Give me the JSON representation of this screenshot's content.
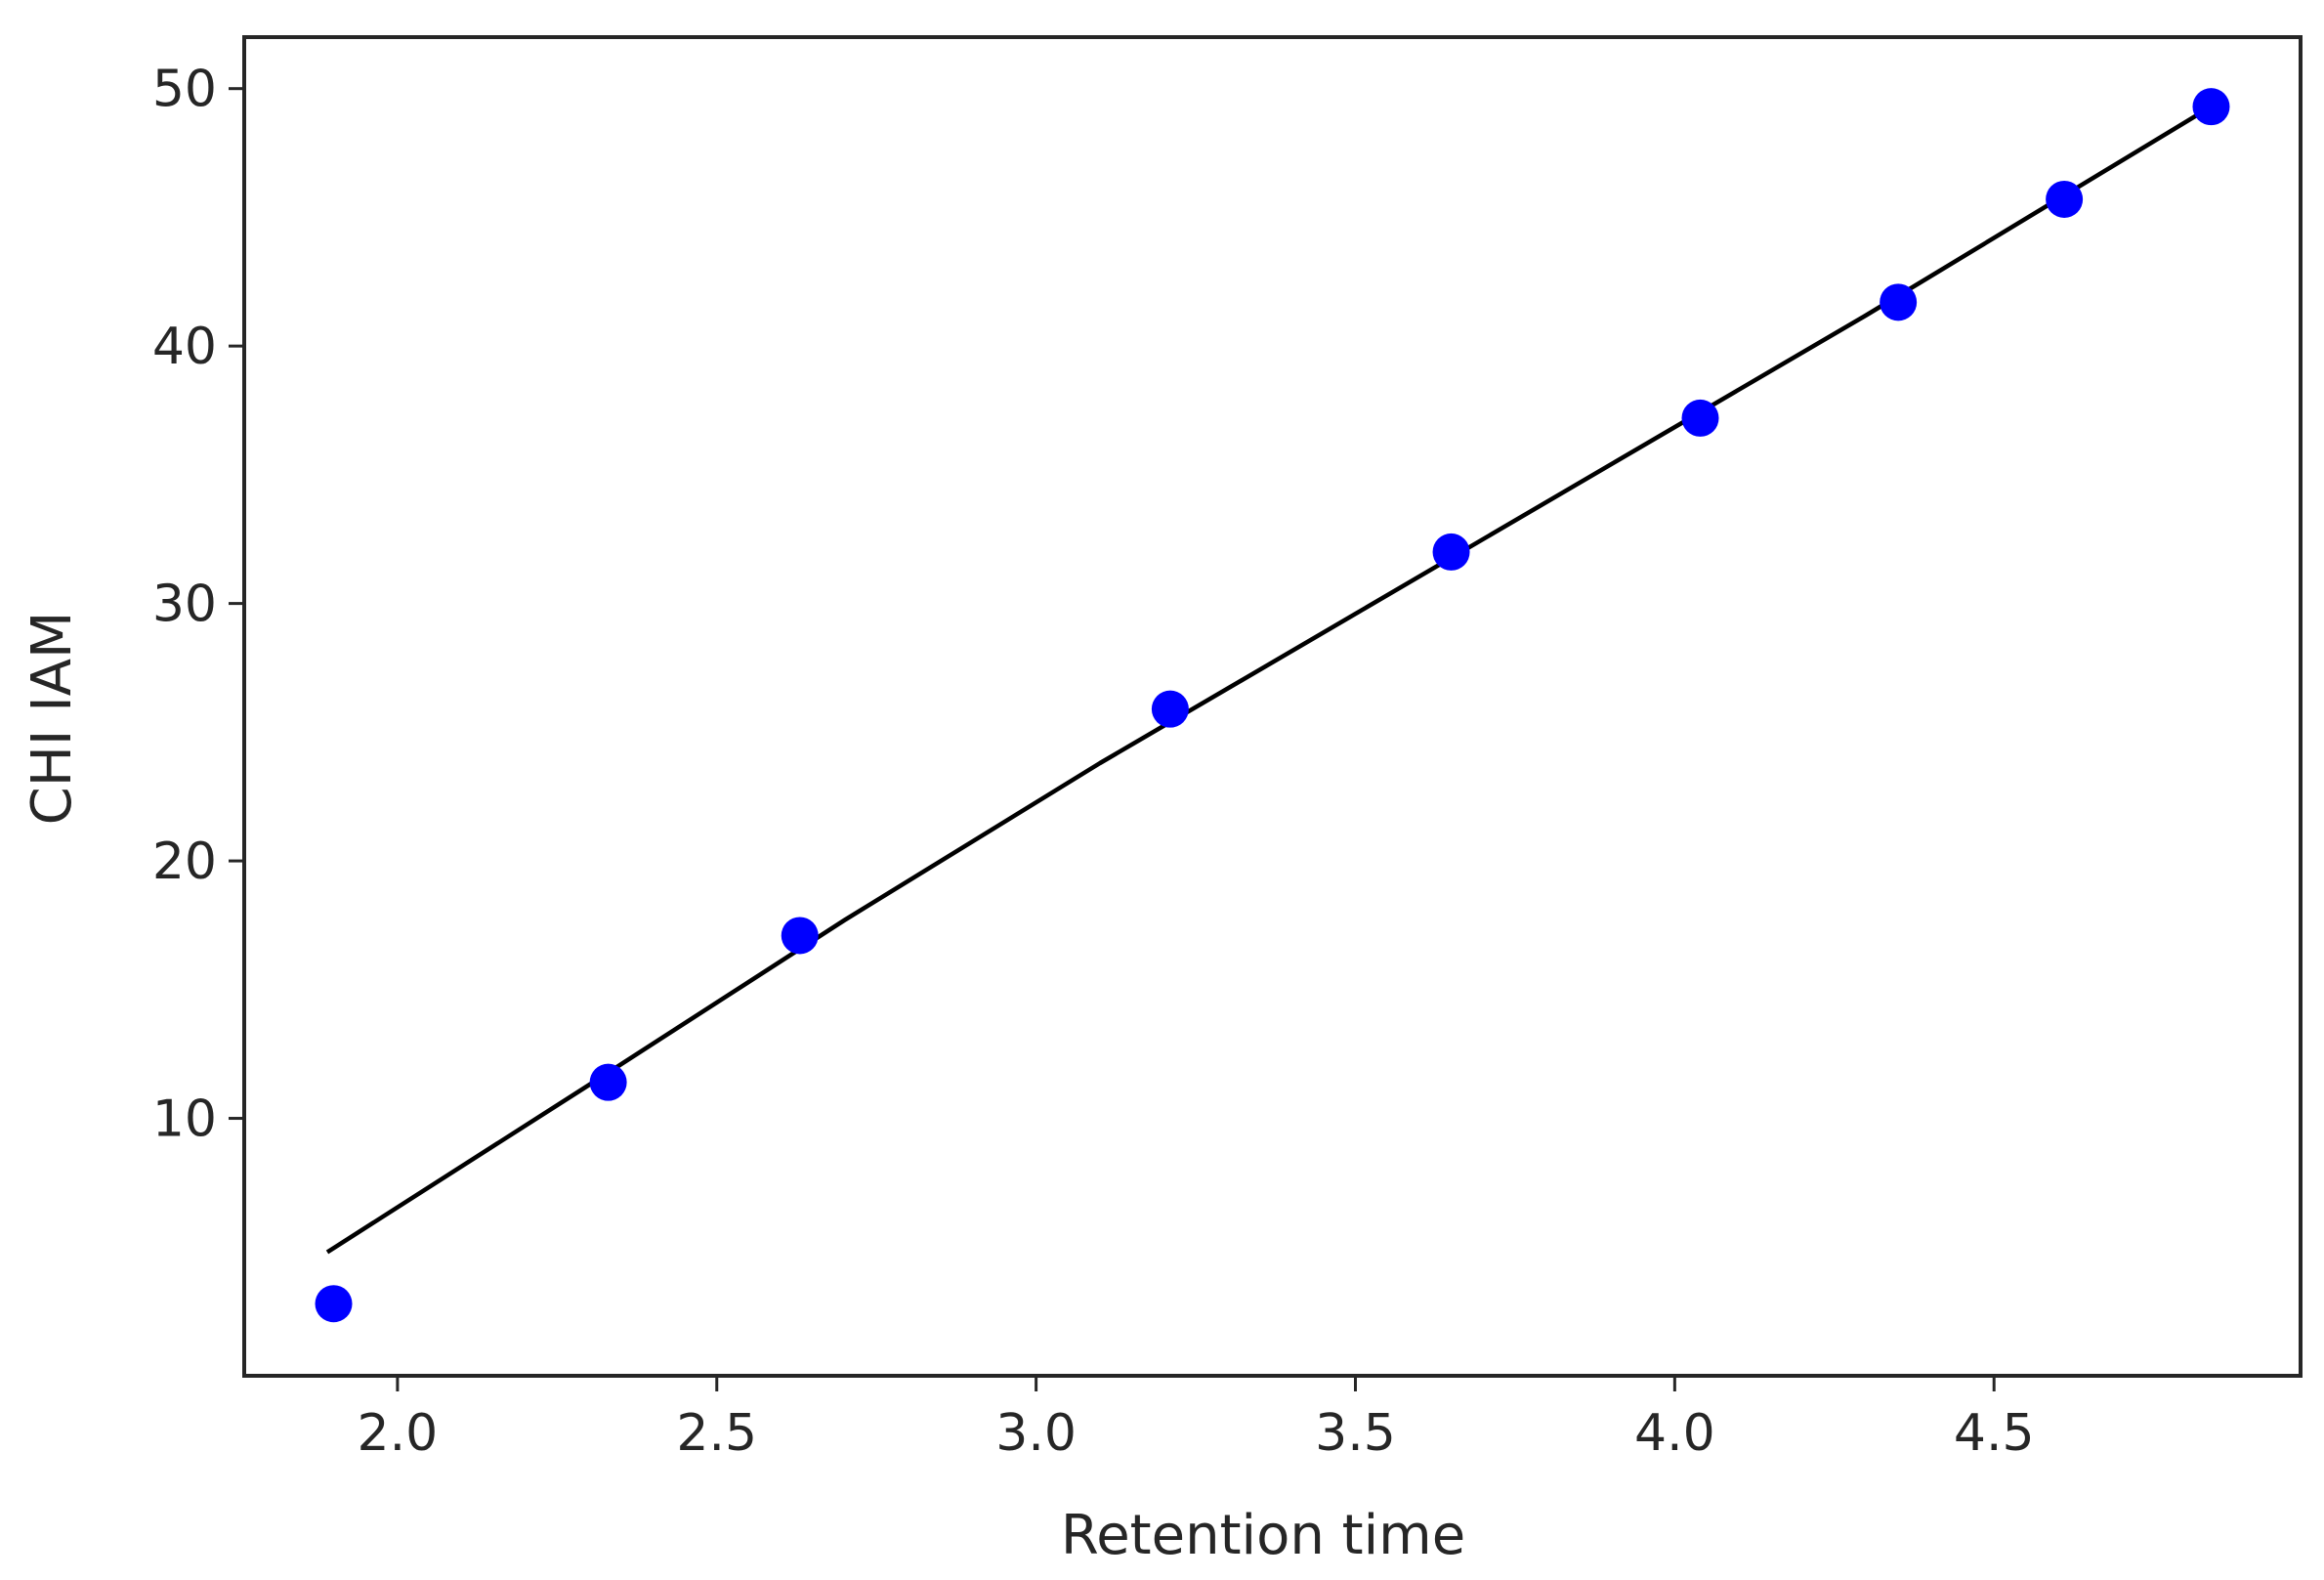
{
  "chart_data": {
    "type": "scatter",
    "xlabel": "Retention time",
    "ylabel": "CHI IAM",
    "xlim": [
      1.76,
      4.98
    ],
    "ylim": [
      0.0,
      52.0
    ],
    "x_ticks": [
      "2.0",
      "2.5",
      "3.0",
      "3.5",
      "4.0",
      "4.5"
    ],
    "y_ticks": [
      "10",
      "20",
      "30",
      "40",
      "50"
    ],
    "grid": false,
    "legend": "none",
    "series": [
      {
        "kind": "scatter",
        "color": "#0000ff",
        "points": [
          {
            "x": 1.9,
            "y": 2.8
          },
          {
            "x": 2.33,
            "y": 11.4
          },
          {
            "x": 2.63,
            "y": 17.1
          },
          {
            "x": 3.21,
            "y": 25.9
          },
          {
            "x": 3.65,
            "y": 32.0
          },
          {
            "x": 4.04,
            "y": 37.2
          },
          {
            "x": 4.35,
            "y": 41.7
          },
          {
            "x": 4.61,
            "y": 45.7
          },
          {
            "x": 4.84,
            "y": 49.3
          }
        ]
      },
      {
        "kind": "line",
        "color": "#000000",
        "points": [
          {
            "x": 1.89,
            "y": 4.8
          },
          {
            "x": 2.3,
            "y": 11.3
          },
          {
            "x": 2.7,
            "y": 17.7
          },
          {
            "x": 3.1,
            "y": 23.8
          },
          {
            "x": 3.5,
            "y": 29.6
          },
          {
            "x": 3.9,
            "y": 35.4
          },
          {
            "x": 4.3,
            "y": 41.2
          },
          {
            "x": 4.84,
            "y": 49.3
          }
        ]
      }
    ]
  }
}
